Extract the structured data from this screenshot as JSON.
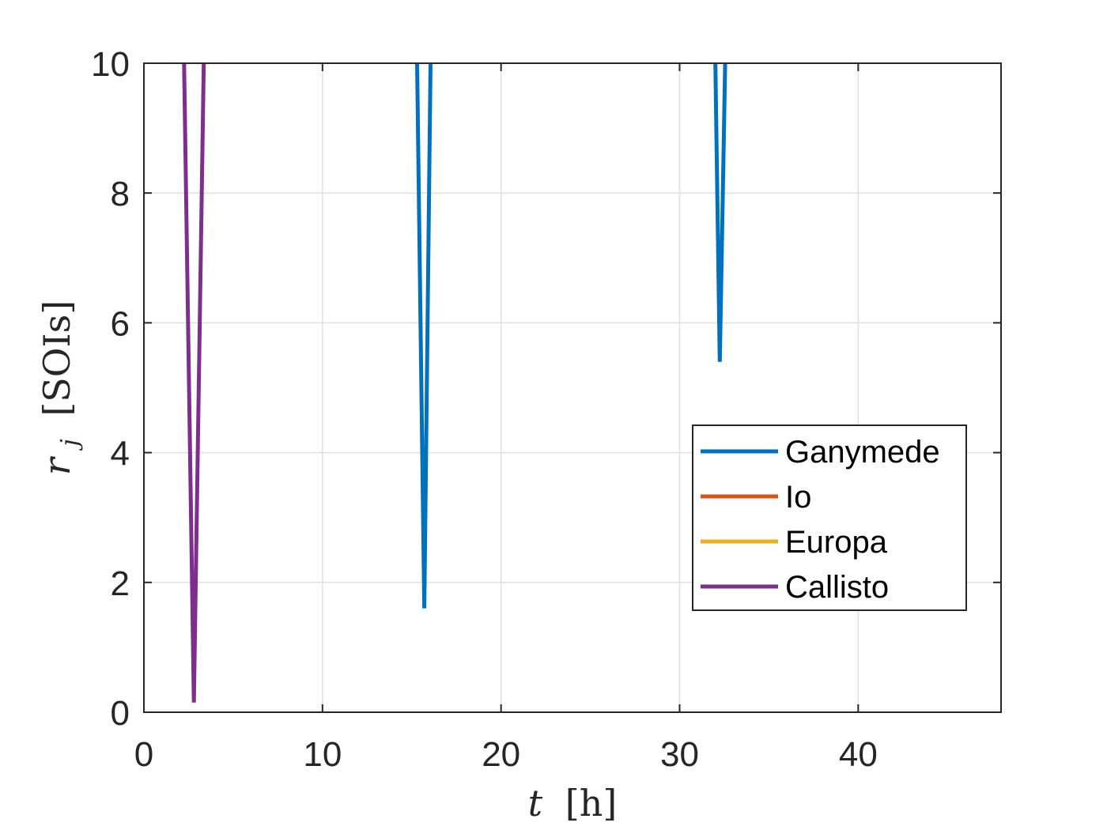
{
  "chart_data": {
    "type": "line",
    "xlabel": {
      "var": "t",
      "unit": "[h]"
    },
    "ylabel": {
      "var": "r",
      "sub": "j",
      "unit": "[SOIs]"
    },
    "xlim": [
      0,
      48
    ],
    "ylim": [
      0,
      10
    ],
    "xticks": [
      0,
      10,
      20,
      30,
      40
    ],
    "yticks": [
      0,
      2,
      4,
      6,
      8,
      10
    ],
    "grid": true,
    "legend_position": "right",
    "series": [
      {
        "name": "Ganymede",
        "color": "#0072BD",
        "segments": [
          [
            [
              15.3,
              10
            ],
            [
              15.7,
              1.6
            ],
            [
              16.05,
              10
            ]
          ],
          [
            [
              32.0,
              10
            ],
            [
              32.25,
              5.4
            ],
            [
              32.55,
              10
            ]
          ]
        ]
      },
      {
        "name": "Io",
        "color": "#D95319",
        "segments": []
      },
      {
        "name": "Europa",
        "color": "#EDB120",
        "segments": []
      },
      {
        "name": "Callisto",
        "color": "#7E2F8E",
        "segments": [
          [
            [
              2.25,
              10
            ],
            [
              2.8,
              0.15
            ],
            [
              3.35,
              10
            ]
          ]
        ]
      }
    ]
  }
}
